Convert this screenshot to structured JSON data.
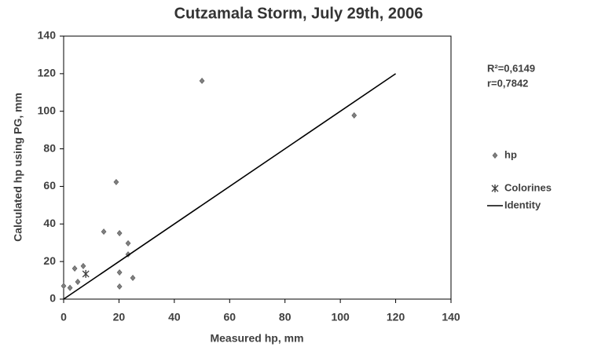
{
  "chart_data": {
    "type": "scatter",
    "title": "Cutzamala Storm, July 29th, 2006",
    "x_label": "Measured hp, mm",
    "y_label": "Calculated hp using PG, mm",
    "annotations": [
      "R²=0,6149",
      "r=0,7842"
    ],
    "xlim": [
      0,
      140
    ],
    "xticks": [
      0,
      20,
      40,
      60,
      80,
      100,
      120,
      140
    ],
    "ylim": [
      0,
      140
    ],
    "yticks": [
      0,
      20,
      40,
      60,
      80,
      100,
      120,
      140
    ],
    "grid": false,
    "series": [
      {
        "name": "hp",
        "marker": "diamond",
        "color": "#7f7f7f",
        "x": [
          0,
          2.3,
          4,
          5.1,
          7.1,
          14.5,
          19,
          20.2,
          20.2,
          20.2,
          23.3,
          23.3,
          25,
          50,
          105
        ],
        "values": [
          7,
          6,
          16.3,
          9.2,
          17.6,
          35.9,
          62.3,
          35.1,
          14.2,
          6.7,
          29.7,
          23.8,
          11.3,
          116.2,
          97.8
        ]
      },
      {
        "name": "Colorines",
        "marker": "star",
        "color": "#404040",
        "x": [
          8
        ],
        "values": [
          13.4
        ]
      },
      {
        "name": "Identity",
        "marker": "line",
        "color": "#000000",
        "x": [
          0,
          120
        ],
        "values": [
          0,
          120
        ]
      }
    ]
  }
}
